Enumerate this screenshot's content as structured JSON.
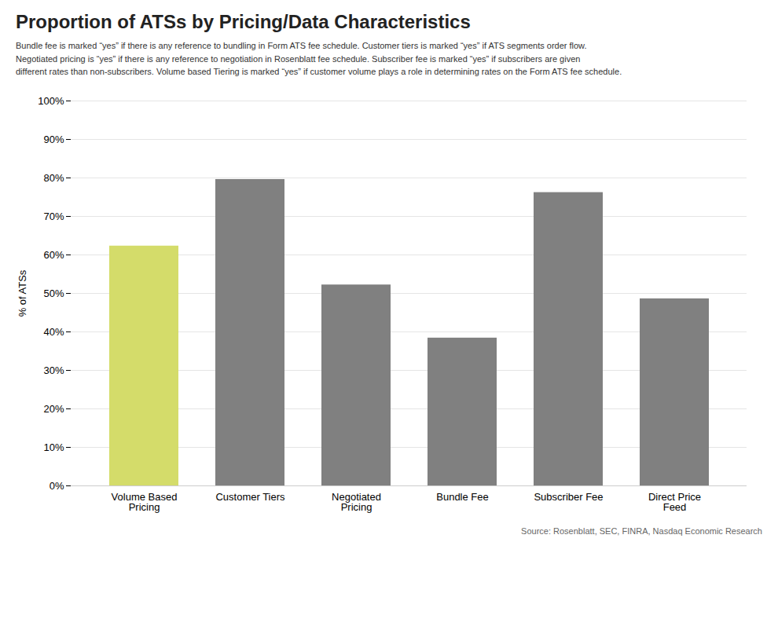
{
  "chart_data": {
    "type": "bar",
    "title": "Proportion of ATSs by Pricing/Data Characteristics",
    "subtitle": "Bundle fee is marked “yes” if there is any reference to bundling in Form ATS fee schedule. Customer tiers is marked “yes” if ATS segments order flow.\nNegotiated pricing is “yes” if there is any reference to negotiation in Rosenblatt fee schedule. Subscriber fee is marked “yes” if subscribers are given\ndifferent rates than non-subscribers. Volume based Tiering is marked “yes” if customer volume plays a role in determining rates on the Form ATS fee schedule.",
    "source": "Source: Rosenblatt, SEC, FINRA, Nasdaq Economic Research",
    "categories": [
      "Volume Based\nPricing",
      "Customer Tiers",
      "Negotiated\nPricing",
      "Bundle Fee",
      "Subscriber Fee",
      "Direct Price\nFeed"
    ],
    "values": [
      0.623,
      0.796,
      0.522,
      0.384,
      0.762,
      0.486
    ],
    "colors": [
      "#d4dc6a",
      "#808080",
      "#808080",
      "#808080",
      "#808080",
      "#808080"
    ],
    "ylabel": "% of ATSs",
    "ylim": [
      0,
      1.0
    ],
    "yticks": [
      {
        "value": 0.0,
        "label": "0%"
      },
      {
        "value": 0.1,
        "label": "10%"
      },
      {
        "value": 0.2,
        "label": "20%"
      },
      {
        "value": 0.3,
        "label": "30%"
      },
      {
        "value": 0.4,
        "label": "40%"
      },
      {
        "value": 0.5,
        "label": "50%"
      },
      {
        "value": 0.6,
        "label": "60%"
      },
      {
        "value": 0.7,
        "label": "70%"
      },
      {
        "value": 0.8,
        "label": "80%"
      },
      {
        "value": 0.9,
        "label": "90%"
      },
      {
        "value": 1.0,
        "label": "100%"
      }
    ],
    "grid": true
  }
}
